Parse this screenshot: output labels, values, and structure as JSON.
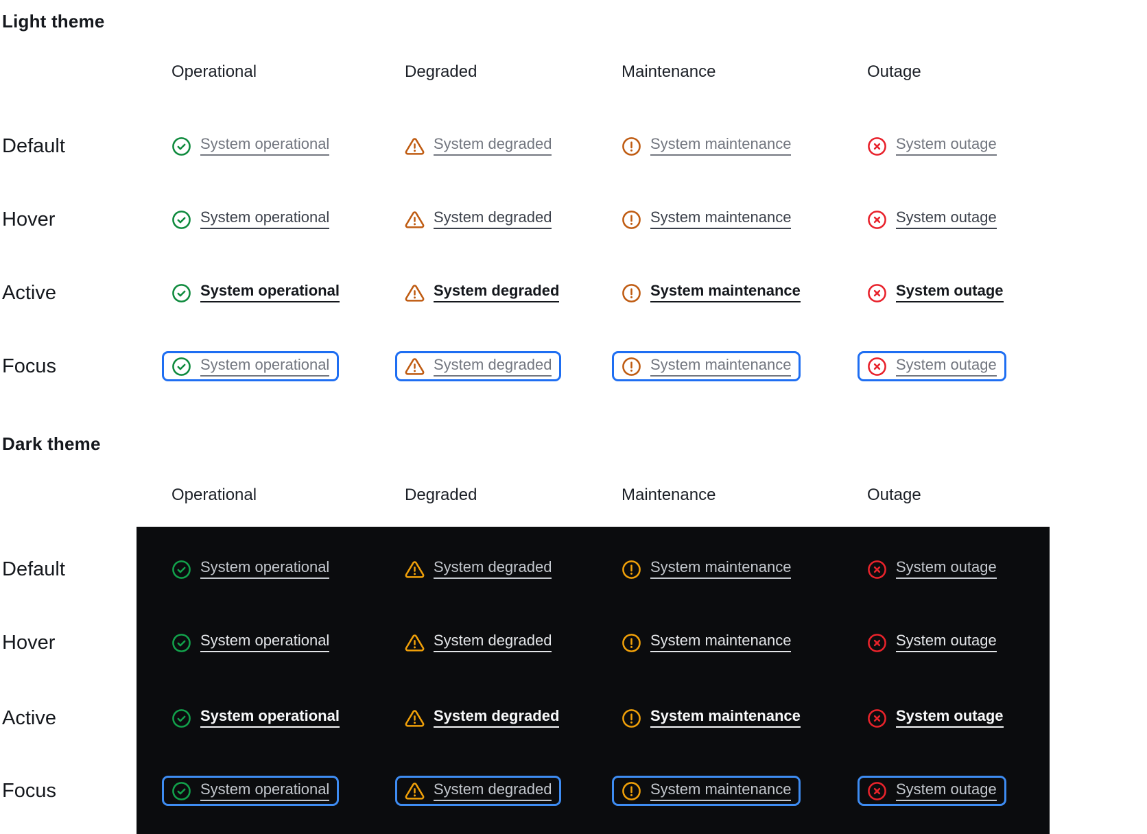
{
  "columns": [
    "Operational",
    "Degraded",
    "Maintenance",
    "Outage"
  ],
  "states": [
    {
      "id": "default",
      "label": "Default"
    },
    {
      "id": "hover",
      "label": "Hover"
    },
    {
      "id": "active",
      "label": "Active"
    },
    {
      "id": "focus",
      "label": "Focus"
    }
  ],
  "statuses": [
    {
      "id": "operational",
      "label": "System operational",
      "icon": "check-circle-icon"
    },
    {
      "id": "degraded",
      "label": "System degraded",
      "icon": "warning-triangle-icon"
    },
    {
      "id": "maintenance",
      "label": "System maintenance",
      "icon": "alert-circle-icon"
    },
    {
      "id": "outage",
      "label": "System outage",
      "icon": "x-circle-icon"
    }
  ],
  "themes": [
    {
      "id": "light",
      "title": "Light theme",
      "background": "#ffffff",
      "focus_ring": "#1e6ef2",
      "icon_colors": {
        "operational": "#0e8a3d",
        "degraded": "#bf5b11",
        "maintenance": "#bf5b11",
        "outage": "#e8212b"
      },
      "link_colors": {
        "default": "#72767f",
        "hover": "#3c414b",
        "active": "#14171c",
        "focus": "#72767f"
      }
    },
    {
      "id": "dark",
      "title": "Dark theme",
      "background": "#0b0c0e",
      "focus_ring": "#3e8cf2",
      "icon_colors": {
        "operational": "#12a14b",
        "degraded": "#f0a009",
        "maintenance": "#f0a009",
        "outage": "#e8232b"
      },
      "link_colors": {
        "default": "#c3c7cd",
        "hover": "#e4e6e9",
        "active": "#f8f9fa",
        "focus": "#c3c7cd"
      }
    }
  ]
}
